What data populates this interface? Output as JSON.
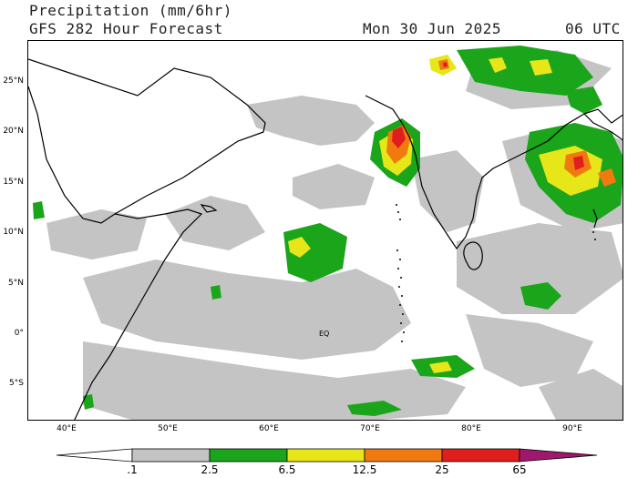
{
  "header": {
    "title": "Precipitation (mm/6hr)",
    "subtitle": "GFS 282 Hour Forecast",
    "date": "Mon 30 Jun 2025",
    "time": "06 UTC"
  },
  "map": {
    "lat_labels": [
      "25°N",
      "20°N",
      "15°N",
      "10°N",
      "5°N",
      "0°",
      "5°S"
    ],
    "lon_labels": [
      "40°E",
      "50°E",
      "60°E",
      "70°E",
      "80°E",
      "90°E"
    ],
    "equator_marker": "EQ",
    "colors": {
      "light_precip": "#c4c4c4",
      "moderate": "#1aa51a",
      "heavy": "#e6e619",
      "very_heavy": "#f07a10",
      "extreme": "#e01e1e",
      "max": "#a0186e",
      "coastline": "#000000"
    }
  },
  "colorbar": {
    "labels": [
      ".1",
      "2.5",
      "6.5",
      "12.5",
      "25",
      "65"
    ],
    "colors": [
      "#ffffff",
      "#c4c4c4",
      "#1aa51a",
      "#e6e619",
      "#f07a10",
      "#e01e1e",
      "#a0186e"
    ]
  }
}
